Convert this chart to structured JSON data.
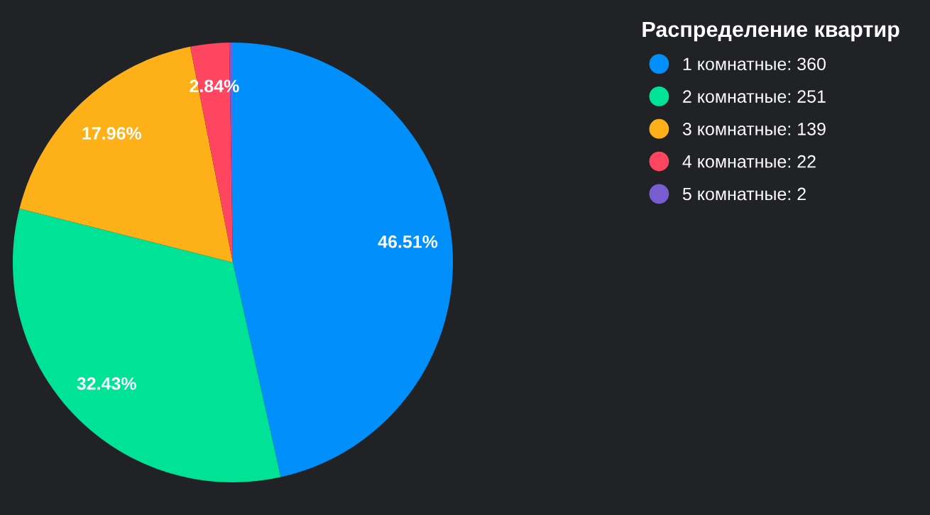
{
  "chart_data": {
    "type": "pie",
    "legend_title": "Распределение квартир",
    "categories": [
      "1 комнатные: 360",
      "2 комнатные: 251",
      "3 комнатные: 139",
      "4 комнатные: 22",
      "5 комнатные: 2"
    ],
    "values": [
      46.51,
      32.43,
      17.96,
      2.84,
      0.26
    ],
    "colors": [
      "#008ffb",
      "#00e396",
      "#feb019",
      "#ff4560",
      "#775dd0"
    ],
    "value_labels": [
      "46.51%",
      "32.43%",
      "17.96%",
      "2.84%",
      null
    ],
    "legend": "top right"
  }
}
